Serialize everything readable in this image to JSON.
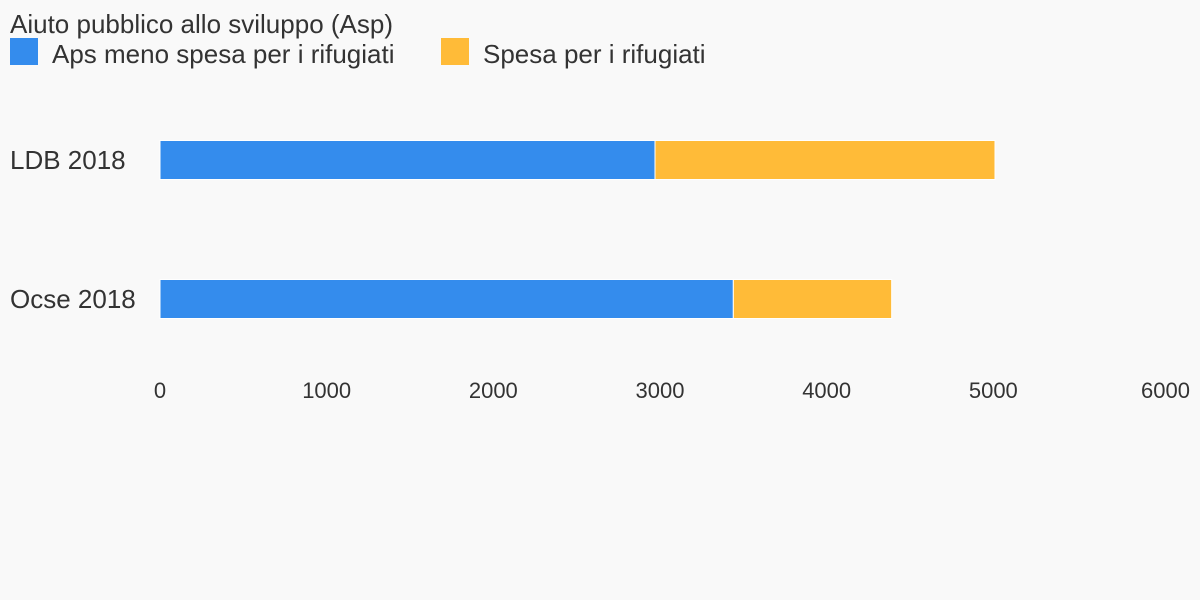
{
  "chart_data": {
    "type": "bar",
    "orientation": "horizontal",
    "stacked": true,
    "title": "Aiuto pubblico allo sviluppo (Asp)",
    "categories": [
      "LDB 2018",
      "Ocse 2018"
    ],
    "series": [
      {
        "name": "Aps meno spesa per i rifugiati",
        "color": "#348ced",
        "values": [
          2970,
          3440
        ]
      },
      {
        "name": "Spesa per i rifugiati",
        "color": "#ffbb38",
        "values": [
          2040,
          950
        ]
      }
    ],
    "xlim": [
      0,
      6000
    ],
    "xticks": [
      0,
      1000,
      2000,
      3000,
      4000,
      5000,
      6000
    ],
    "xtick_labels": [
      "0",
      "1000",
      "2000",
      "3000",
      "4000",
      "5000",
      "6000"
    ],
    "grid": false,
    "legend_position": "top-left"
  }
}
